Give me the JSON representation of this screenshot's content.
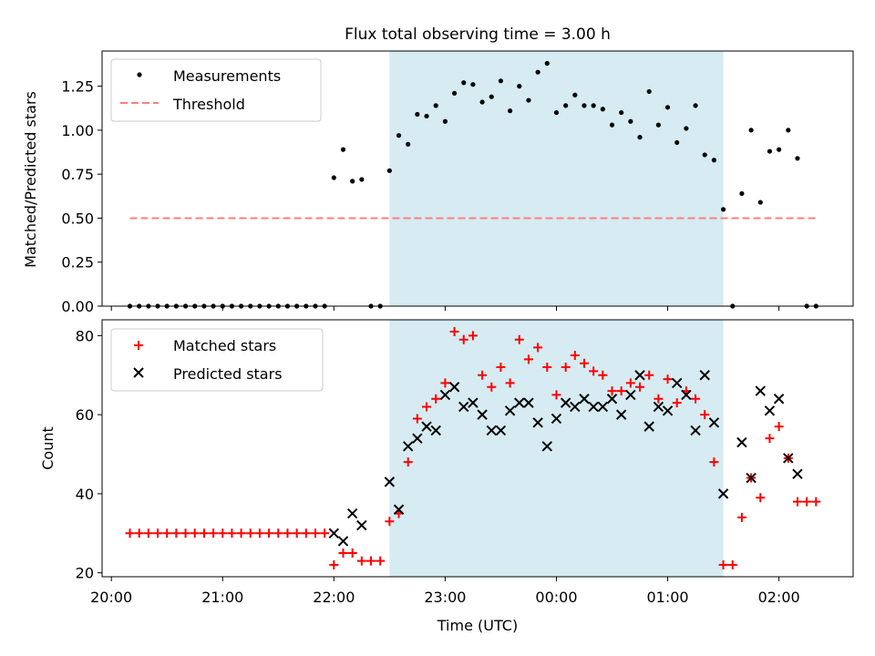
{
  "chart_data": [
    {
      "type": "scatter",
      "title": "Flux total observing time = 3.00 h",
      "xlabel": "",
      "ylabel": "Matched/Predicted stars",
      "xlim": [
        "19:55",
        "02:40"
      ],
      "ylim": [
        0,
        1.45
      ],
      "yticks": [
        "0.00",
        "0.25",
        "0.50",
        "0.75",
        "1.00",
        "1.25"
      ],
      "shaded_interval": [
        "22:30",
        "01:30"
      ],
      "legend_position": "upper left",
      "series": [
        {
          "name": "Measurements",
          "marker": "dot",
          "color": "#000000",
          "points": [
            [
              "20:10",
              0
            ],
            [
              "20:15",
              0
            ],
            [
              "20:20",
              0
            ],
            [
              "20:25",
              0
            ],
            [
              "20:30",
              0
            ],
            [
              "20:35",
              0
            ],
            [
              "20:40",
              0
            ],
            [
              "20:45",
              0
            ],
            [
              "20:50",
              0
            ],
            [
              "20:55",
              0
            ],
            [
              "21:00",
              0
            ],
            [
              "21:05",
              0
            ],
            [
              "21:10",
              0
            ],
            [
              "21:15",
              0
            ],
            [
              "21:20",
              0
            ],
            [
              "21:25",
              0
            ],
            [
              "21:30",
              0
            ],
            [
              "21:35",
              0
            ],
            [
              "21:40",
              0
            ],
            [
              "21:45",
              0
            ],
            [
              "21:50",
              0
            ],
            [
              "21:55",
              0
            ],
            [
              "22:00",
              0.73
            ],
            [
              "22:05",
              0.89
            ],
            [
              "22:10",
              0.71
            ],
            [
              "22:15",
              0.72
            ],
            [
              "22:20",
              0
            ],
            [
              "22:25",
              0
            ],
            [
              "22:30",
              0.77
            ],
            [
              "22:35",
              0.97
            ],
            [
              "22:40",
              0.92
            ],
            [
              "22:45",
              1.09
            ],
            [
              "22:50",
              1.08
            ],
            [
              "22:55",
              1.14
            ],
            [
              "23:00",
              1.05
            ],
            [
              "23:05",
              1.21
            ],
            [
              "23:10",
              1.27
            ],
            [
              "23:15",
              1.26
            ],
            [
              "23:20",
              1.16
            ],
            [
              "23:25",
              1.19
            ],
            [
              "23:30",
              1.28
            ],
            [
              "23:35",
              1.11
            ],
            [
              "23:40",
              1.25
            ],
            [
              "23:45",
              1.17
            ],
            [
              "23:50",
              1.33
            ],
            [
              "23:55",
              1.38
            ],
            [
              "00:00",
              1.1
            ],
            [
              "00:05",
              1.14
            ],
            [
              "00:10",
              1.2
            ],
            [
              "00:15",
              1.14
            ],
            [
              "00:20",
              1.14
            ],
            [
              "00:25",
              1.12
            ],
            [
              "00:30",
              1.03
            ],
            [
              "00:35",
              1.1
            ],
            [
              "00:40",
              1.05
            ],
            [
              "00:45",
              0.96
            ],
            [
              "00:50",
              1.22
            ],
            [
              "00:55",
              1.03
            ],
            [
              "01:00",
              1.13
            ],
            [
              "01:05",
              0.93
            ],
            [
              "01:10",
              1.01
            ],
            [
              "01:15",
              1.14
            ],
            [
              "01:20",
              0.86
            ],
            [
              "01:25",
              0.83
            ],
            [
              "01:30",
              0.55
            ],
            [
              "01:35",
              0
            ],
            [
              "01:40",
              0.64
            ],
            [
              "01:45",
              1.0
            ],
            [
              "01:50",
              0.59
            ],
            [
              "01:55",
              0.88
            ],
            [
              "02:00",
              0.89
            ],
            [
              "02:05",
              1.0
            ],
            [
              "02:10",
              0.84
            ],
            [
              "02:15",
              0
            ],
            [
              "02:20",
              0
            ]
          ]
        },
        {
          "name": "Threshold",
          "style": "dashed",
          "color": "#ff7f7f",
          "points": [
            [
              "20:10",
              0.5
            ],
            [
              "02:20",
              0.5
            ]
          ]
        }
      ]
    },
    {
      "type": "scatter",
      "title": "",
      "xlabel": "Time (UTC)",
      "ylabel": "Count",
      "xlim": [
        "19:55",
        "02:40"
      ],
      "ylim": [
        19,
        84
      ],
      "yticks": [
        "20",
        "40",
        "60",
        "80"
      ],
      "xticks": [
        "20:00",
        "21:00",
        "22:00",
        "23:00",
        "00:00",
        "01:00",
        "02:00"
      ],
      "shaded_interval": [
        "22:30",
        "01:30"
      ],
      "legend_position": "upper left",
      "series": [
        {
          "name": "Matched stars",
          "marker": "plus",
          "color": "#ff0000",
          "points": [
            [
              "20:10",
              30
            ],
            [
              "20:15",
              30
            ],
            [
              "20:20",
              30
            ],
            [
              "20:25",
              30
            ],
            [
              "20:30",
              30
            ],
            [
              "20:35",
              30
            ],
            [
              "20:40",
              30
            ],
            [
              "20:45",
              30
            ],
            [
              "20:50",
              30
            ],
            [
              "20:55",
              30
            ],
            [
              "21:00",
              30
            ],
            [
              "21:05",
              30
            ],
            [
              "21:10",
              30
            ],
            [
              "21:15",
              30
            ],
            [
              "21:20",
              30
            ],
            [
              "21:25",
              30
            ],
            [
              "21:30",
              30
            ],
            [
              "21:35",
              30
            ],
            [
              "21:40",
              30
            ],
            [
              "21:45",
              30
            ],
            [
              "21:50",
              30
            ],
            [
              "21:55",
              30
            ],
            [
              "22:00",
              22
            ],
            [
              "22:05",
              25
            ],
            [
              "22:10",
              25
            ],
            [
              "22:15",
              23
            ],
            [
              "22:20",
              23
            ],
            [
              "22:25",
              23
            ],
            [
              "22:30",
              33
            ],
            [
              "22:35",
              35
            ],
            [
              "22:40",
              48
            ],
            [
              "22:45",
              59
            ],
            [
              "22:50",
              62
            ],
            [
              "22:55",
              64
            ],
            [
              "23:00",
              68
            ],
            [
              "23:05",
              81
            ],
            [
              "23:10",
              79
            ],
            [
              "23:15",
              80
            ],
            [
              "23:20",
              70
            ],
            [
              "23:25",
              67
            ],
            [
              "23:30",
              72
            ],
            [
              "23:35",
              68
            ],
            [
              "23:40",
              79
            ],
            [
              "23:45",
              74
            ],
            [
              "23:50",
              77
            ],
            [
              "23:55",
              72
            ],
            [
              "00:00",
              65
            ],
            [
              "00:05",
              72
            ],
            [
              "00:10",
              75
            ],
            [
              "00:15",
              73
            ],
            [
              "00:20",
              71
            ],
            [
              "00:25",
              70
            ],
            [
              "00:30",
              66
            ],
            [
              "00:35",
              66
            ],
            [
              "00:40",
              68
            ],
            [
              "00:45",
              67
            ],
            [
              "00:50",
              70
            ],
            [
              "00:55",
              64
            ],
            [
              "01:00",
              69
            ],
            [
              "01:05",
              63
            ],
            [
              "01:10",
              66
            ],
            [
              "01:15",
              64
            ],
            [
              "01:20",
              60
            ],
            [
              "01:25",
              48
            ],
            [
              "01:30",
              22
            ],
            [
              "01:35",
              22
            ],
            [
              "01:40",
              34
            ],
            [
              "01:45",
              44
            ],
            [
              "01:50",
              39
            ],
            [
              "01:55",
              54
            ],
            [
              "02:00",
              57
            ],
            [
              "02:05",
              49
            ],
            [
              "02:10",
              38
            ],
            [
              "02:15",
              38
            ],
            [
              "02:20",
              38
            ]
          ]
        },
        {
          "name": "Predicted stars",
          "marker": "x",
          "color": "#000000",
          "points": [
            [
              "22:00",
              30
            ],
            [
              "22:05",
              28
            ],
            [
              "22:10",
              35
            ],
            [
              "22:15",
              32
            ],
            [
              "22:30",
              43
            ],
            [
              "22:35",
              36
            ],
            [
              "22:40",
              52
            ],
            [
              "22:45",
              54
            ],
            [
              "22:50",
              57
            ],
            [
              "22:55",
              56
            ],
            [
              "23:00",
              65
            ],
            [
              "23:05",
              67
            ],
            [
              "23:10",
              62
            ],
            [
              "23:15",
              63
            ],
            [
              "23:20",
              60
            ],
            [
              "23:25",
              56
            ],
            [
              "23:30",
              56
            ],
            [
              "23:35",
              61
            ],
            [
              "23:40",
              63
            ],
            [
              "23:45",
              63
            ],
            [
              "23:50",
              58
            ],
            [
              "23:55",
              52
            ],
            [
              "00:00",
              59
            ],
            [
              "00:05",
              63
            ],
            [
              "00:10",
              62
            ],
            [
              "00:15",
              64
            ],
            [
              "00:20",
              62
            ],
            [
              "00:25",
              62
            ],
            [
              "00:30",
              64
            ],
            [
              "00:35",
              60
            ],
            [
              "00:40",
              65
            ],
            [
              "00:45",
              70
            ],
            [
              "00:50",
              57
            ],
            [
              "00:55",
              62
            ],
            [
              "01:00",
              61
            ],
            [
              "01:05",
              68
            ],
            [
              "01:10",
              65
            ],
            [
              "01:15",
              56
            ],
            [
              "01:20",
              70
            ],
            [
              "01:25",
              58
            ],
            [
              "01:30",
              40
            ],
            [
              "01:40",
              53
            ],
            [
              "01:45",
              44
            ],
            [
              "01:50",
              66
            ],
            [
              "01:55",
              61
            ],
            [
              "02:00",
              64
            ],
            [
              "02:05",
              49
            ],
            [
              "02:10",
              45
            ]
          ]
        }
      ]
    }
  ]
}
